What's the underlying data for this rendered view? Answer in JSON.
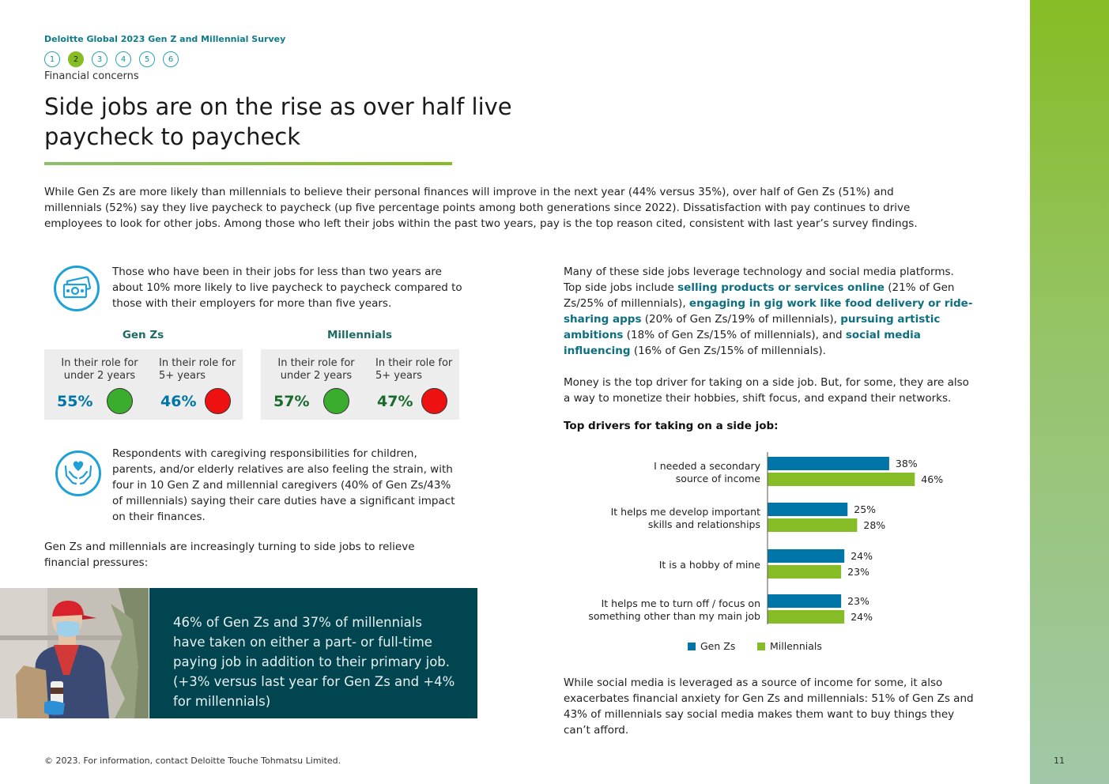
{
  "header": {
    "survey_title": "Deloitte Global 2023 Gen Z and Millennial Survey",
    "nav": [
      "1",
      "2",
      "3",
      "4",
      "5",
      "6"
    ],
    "active_nav": "2",
    "section": "Financial concerns"
  },
  "title": "Side jobs are on the rise as over half live paycheck to paycheck",
  "intro": "While Gen Zs are more likely than millennials to believe their personal finances will improve in the next year (44% versus 35%), over half of Gen Zs (51%) and millennials (52%) say they live paycheck to paycheck (up five percentage points among both generations since 2022). Dissatisfaction with pay continues to drive employees to look for other jobs. Among those who left their jobs within the past two years, pay is the top reason cited, consistent with last year’s survey findings.",
  "tenure_note": "Those who have been in their jobs for less than two years are about 10% more likely to live paycheck to paycheck compared to those with their employers for more than five years.",
  "stats": {
    "genz": {
      "label": "Gen Zs",
      "under2_label": "In their role for under 2 years",
      "under2_value": "55%",
      "over5_label": "In their role for 5+ years",
      "over5_value": "46%"
    },
    "millennials": {
      "label": "Millennials",
      "under2_label": "In their role for under 2 years",
      "under2_value": "57%",
      "over5_label": "In their role for 5+ years",
      "over5_value": "47%"
    }
  },
  "caregiving": "Respondents with caregiving responsibilities for children, parents, and/or elderly relatives are also feeling the strain, with four in 10 Gen Z and millennial caregivers (40% of Gen Zs/43% of millennials) saying their care duties have a significant impact on their finances.",
  "side_jobs_lead": "Gen Zs and millennials are increasingly turning to side jobs to relieve financial pressures:",
  "callout": "46% of Gen Zs and 37% of millennials have taken on either a part- or full-time paying job in addition to their primary job. (+3% versus last year for Gen Zs and +4% for millennials)",
  "right": {
    "p1": {
      "t1": "Many of these side jobs leverage technology and social media platforms. Top side jobs include ",
      "h1": "selling products or services online",
      "t2": " (21% of Gen Zs/25% of millennials), ",
      "h2": "engaging in gig work like food delivery or ride-sharing apps",
      "t3": " (20% of Gen Zs/19% of millennials), ",
      "h3": "pursuing artistic ambitions",
      "t4": " (18% of Gen Zs/15% of millennials), and ",
      "h4": "social media influencing",
      "t5": " (16% of Gen Zs/15% of millennials)."
    },
    "p2": "Money is the top driver for taking on a side job. But, for some, they are also a way to monetize their hobbies, shift focus, and expand their networks.",
    "chart_title": "Top drivers for taking on a side job:",
    "p3": "While social media is leveraged as a source of income for some, it also exacerbates financial anxiety for Gen Zs and millennials: 51% of Gen Zs and 43% of millennials say social media makes them want to buy things they can’t afford."
  },
  "chart_data": {
    "type": "bar",
    "orientation": "horizontal",
    "categories": [
      [
        "I needed a secondary",
        "source of income"
      ],
      [
        "It helps me develop important",
        "skills and relationships"
      ],
      [
        "It is a hobby of mine"
      ],
      [
        "It helps me to turn off / focus on",
        "something other than my main job"
      ]
    ],
    "series": [
      {
        "name": "Gen Zs",
        "values": [
          38,
          25,
          24,
          23
        ],
        "color": "#0076a8"
      },
      {
        "name": "Millennials",
        "values": [
          46,
          28,
          23,
          24
        ],
        "color": "#86bc25"
      }
    ],
    "value_suffix": "%",
    "legend": "bottom"
  },
  "footer": "© 2023. For information, contact Deloitte Touche Tohmatsu Limited.",
  "page_number": "11"
}
